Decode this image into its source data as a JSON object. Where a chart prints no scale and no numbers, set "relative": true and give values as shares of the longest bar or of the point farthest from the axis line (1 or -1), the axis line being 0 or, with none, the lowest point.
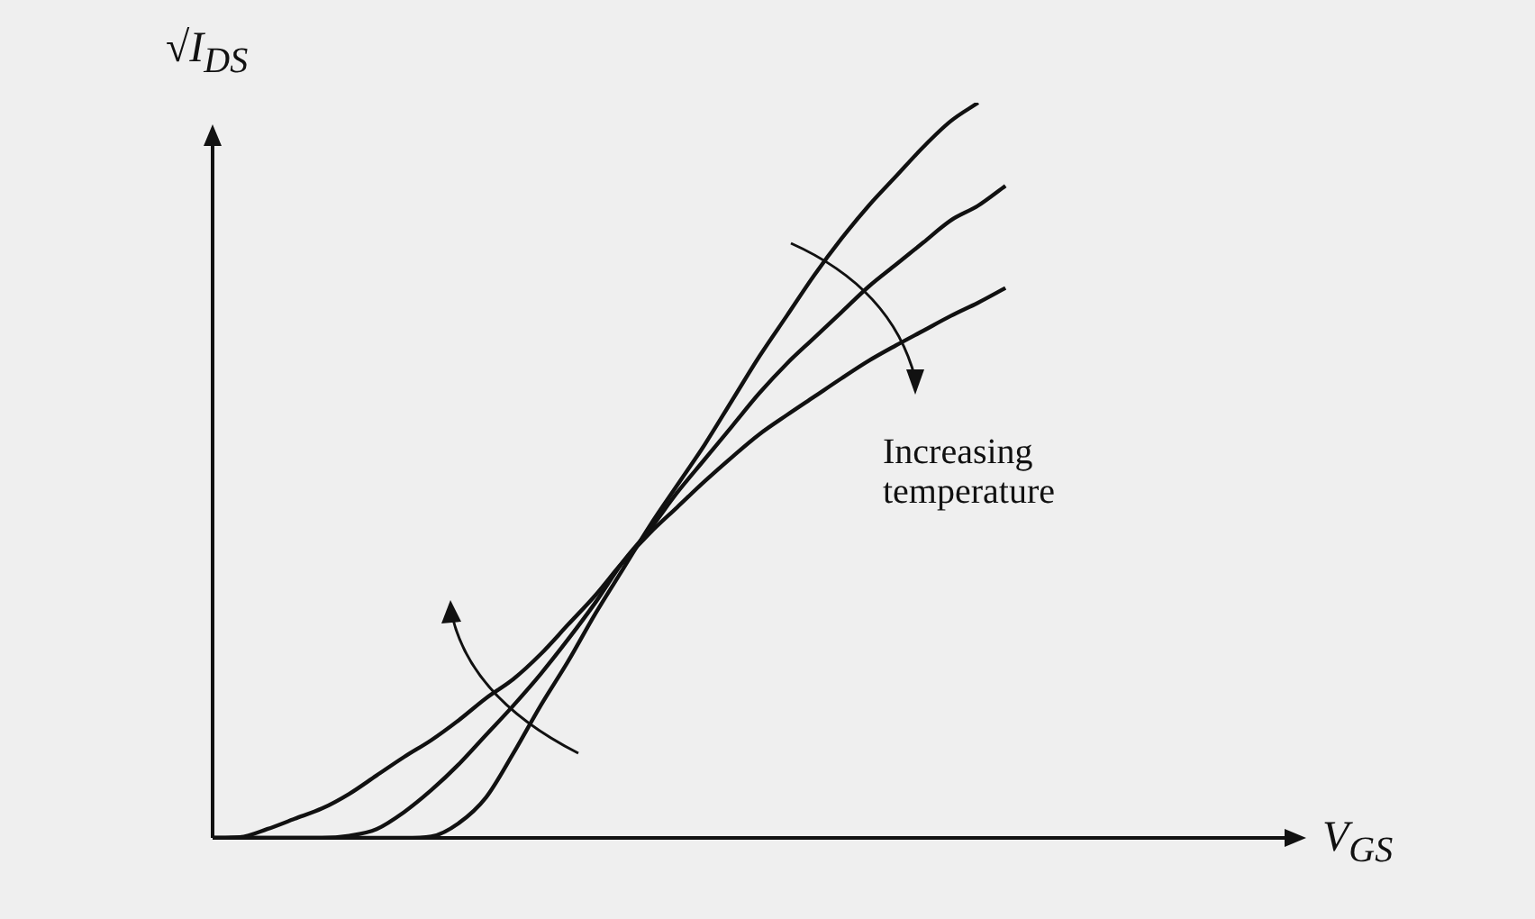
{
  "chart_data": {
    "type": "line",
    "relative": true,
    "xlabel": "V$_{GS}$",
    "ylabel": "√I$_{DS}$",
    "tick_labels": false,
    "legend": false,
    "marker": "none",
    "line_style": "solid",
    "annotations": [
      "Increasing temperature"
    ],
    "categories": [
      null,
      null,
      null,
      null,
      null,
      null,
      null,
      null,
      null,
      null,
      null,
      null,
      null,
      null,
      null,
      null,
      null,
      null,
      null,
      null,
      null,
      null,
      null,
      null,
      null,
      null,
      null,
      null,
      null,
      null,
      null,
      null,
      null,
      null,
      null,
      null,
      null,
      null,
      null,
      null,
      null
    ],
    "series": [
      {
        "color": "#111111",
        "values": [
          0,
          0.001,
          0.012,
          0.026,
          0.04,
          0.06,
          0.085,
          0.11,
          0.133,
          0.16,
          0.19,
          0.216,
          0.25,
          0.29,
          0.33,
          0.375,
          0.415,
          0.45,
          0.485,
          0.518,
          0.549,
          0.575,
          0.6,
          0.625,
          0.649,
          0.67,
          0.69,
          0.71,
          0.728,
          0.748,
          null,
          null,
          null,
          null,
          null,
          null,
          null,
          null,
          null,
          null,
          null
        ]
      },
      {
        "color": "#111111",
        "values": [
          0,
          0,
          0,
          0,
          0,
          0.003,
          0.012,
          0.035,
          0.065,
          0.1,
          0.14,
          0.18,
          0.223,
          0.27,
          0.32,
          0.375,
          0.42,
          0.47,
          0.515,
          0.56,
          0.605,
          0.645,
          0.68,
          0.715,
          0.75,
          0.78,
          0.81,
          0.84,
          0.86,
          0.887,
          null,
          null,
          null,
          null,
          null,
          null,
          null,
          null,
          null,
          null,
          null
        ]
      },
      {
        "color": "#111111",
        "values": [
          0,
          0,
          0,
          0,
          0,
          0,
          0,
          0,
          0.002,
          0.02,
          0.055,
          0.115,
          0.18,
          0.24,
          0.305,
          0.365,
          0.425,
          0.48,
          0.535,
          0.595,
          0.655,
          0.71,
          0.765,
          0.815,
          0.86,
          0.9,
          0.94,
          0.975,
          1,
          null,
          null,
          null,
          null,
          null,
          null,
          null,
          null,
          null,
          null,
          null,
          null
        ]
      }
    ]
  }
}
